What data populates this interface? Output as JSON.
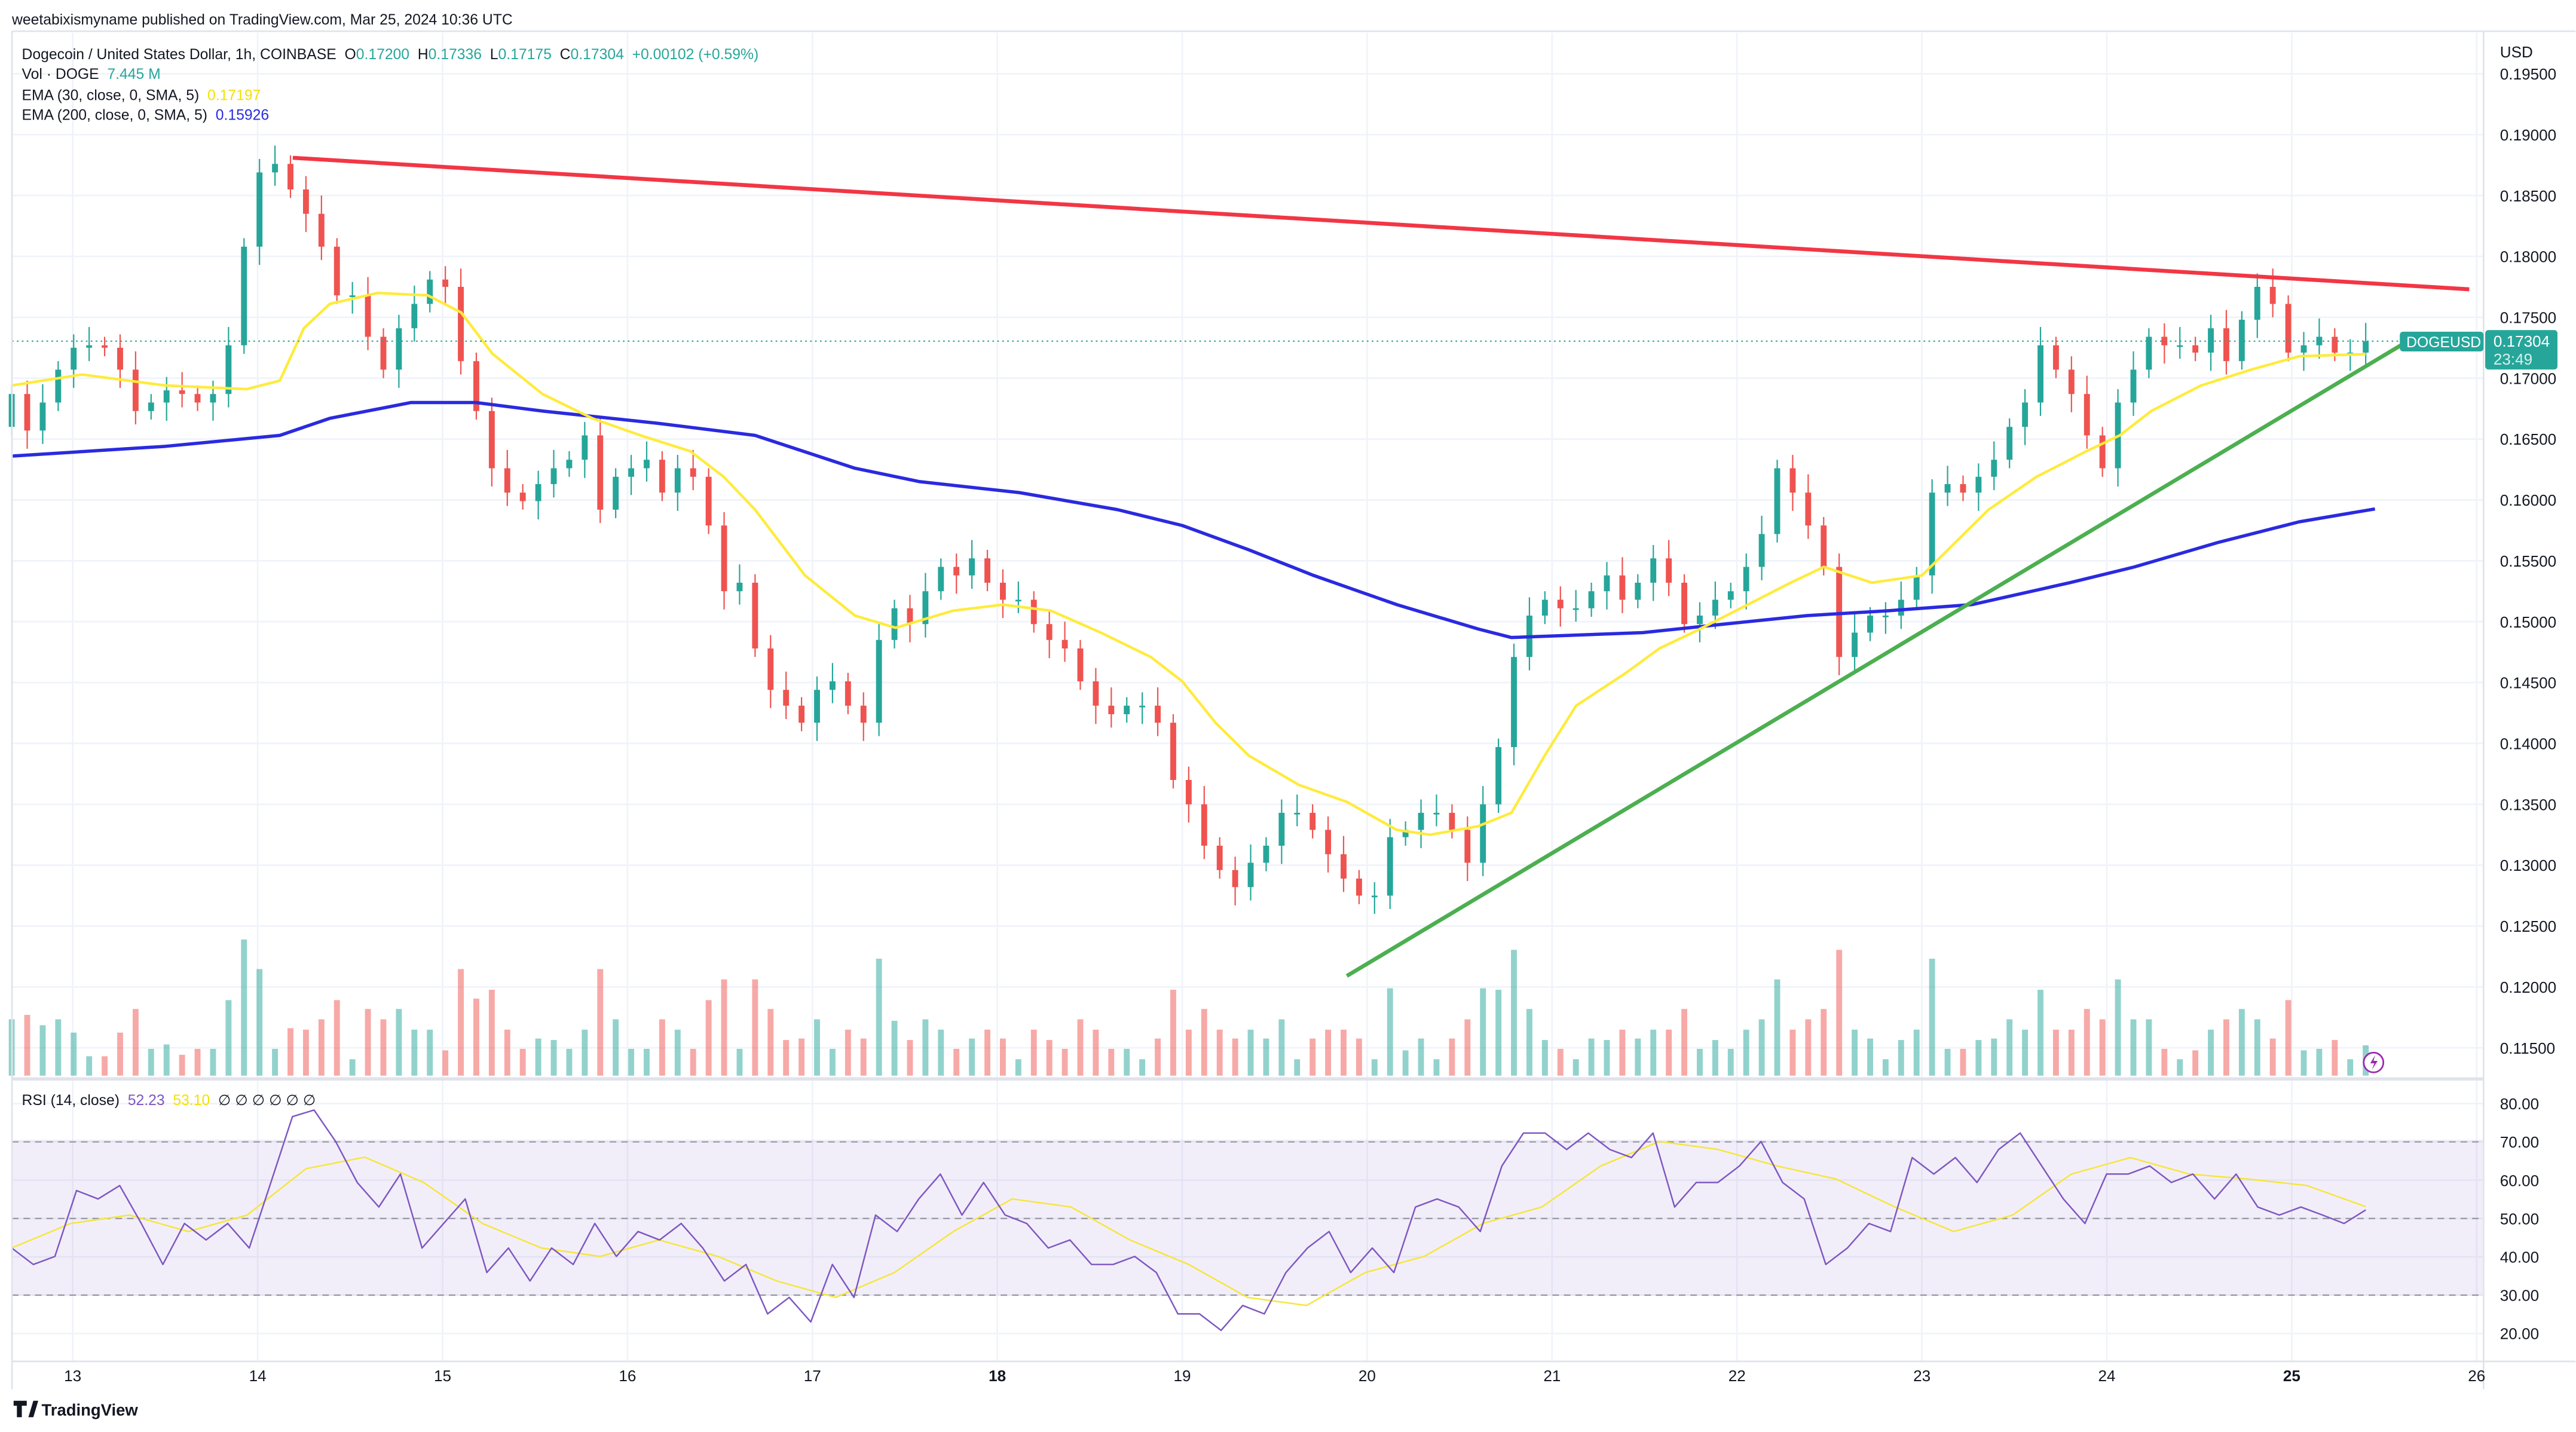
{
  "header": {
    "published": "weetabixismyname published on TradingView.com, Mar 25, 2024 10:36 UTC"
  },
  "legend": {
    "symbol": "Dogecoin / United States Dollar, 1h, COINBASE",
    "o_label": "O",
    "o": "0.17200",
    "h_label": "H",
    "h": "0.17336",
    "l_label": "L",
    "l": "0.17175",
    "c_label": "C",
    "c": "0.17304",
    "change": "+0.00102 (+0.59%)",
    "vol_label": "Vol · DOGE",
    "vol": "7.445 M",
    "ema30_label": "EMA (30, close, 0, SMA, 5)",
    "ema30": "0.17197",
    "ema200_label": "EMA (200, close, 0, SMA, 5)",
    "ema200": "0.15926",
    "rsi_label": "RSI (14, close)",
    "rsi": "52.23",
    "rsi_ma": "53.10",
    "rsi_extra": "∅ ∅ ∅ ∅ ∅ ∅"
  },
  "price_axis": {
    "currency": "USD",
    "ticks": [
      "0.19500",
      "0.19000",
      "0.18500",
      "0.18000",
      "0.17500",
      "0.17000",
      "0.16500",
      "0.16000",
      "0.15500",
      "0.15000",
      "0.14500",
      "0.14000",
      "0.13500",
      "0.13000",
      "0.12500",
      "0.12000",
      "0.11500"
    ]
  },
  "price_tag": {
    "symbol": "DOGEUSD",
    "price": "0.17304",
    "countdown": "23:49"
  },
  "rsi_axis": {
    "ticks": [
      "80.00",
      "70.00",
      "60.00",
      "50.00",
      "40.00",
      "30.00",
      "20.00"
    ]
  },
  "time_axis": {
    "ticks": [
      "13",
      "14",
      "15",
      "16",
      "17",
      "18",
      "19",
      "20",
      "21",
      "22",
      "23",
      "24",
      "25",
      "26"
    ]
  },
  "footer": {
    "brand": "TradingView"
  },
  "colors": {
    "up": "#26a69a",
    "down": "#ef5350",
    "ema30": "#ffeb3b",
    "ema200": "#2a2ae0",
    "resistance": "#f23645",
    "support": "#4caf50",
    "rsi": "#7e57c2",
    "rsi_ma": "#f5e63c"
  },
  "icons": {
    "alert": "lightning-icon"
  },
  "chart_data": {
    "type": "candlestick",
    "xlabel": "",
    "ylabel": "",
    "ylim": [
      0.1125,
      0.1975
    ],
    "time_range_days_of_march": [
      12.67,
      25.4
    ],
    "first_open": 0.166,
    "closes": [
      0.1687,
      0.1657,
      0.168,
      0.1707,
      0.1725,
      0.1727,
      0.1725,
      0.1707,
      0.1673,
      0.168,
      0.169,
      0.1687,
      0.168,
      0.1687,
      0.1727,
      0.1808,
      0.1869,
      0.1876,
      0.1855,
      0.1835,
      0.1808,
      0.1768,
      0.1768,
      0.1734,
      0.1707,
      0.1741,
      0.1761,
      0.1781,
      0.1775,
      0.1714,
      0.1673,
      0.1626,
      0.1606,
      0.1599,
      0.1613,
      0.1626,
      0.1633,
      0.1653,
      0.1592,
      0.1619,
      0.1626,
      0.1633,
      0.1606,
      0.1626,
      0.1619,
      0.1579,
      0.1525,
      0.1532,
      0.1478,
      0.1444,
      0.1431,
      0.1417,
      0.1444,
      0.1451,
      0.1431,
      0.1417,
      0.1485,
      0.1511,
      0.1498,
      0.1525,
      0.1545,
      0.1538,
      0.1552,
      0.1532,
      0.1518,
      0.1518,
      0.1498,
      0.1485,
      0.1478,
      0.1451,
      0.1431,
      0.1424,
      0.1431,
      0.1431,
      0.1417,
      0.137,
      0.135,
      0.1316,
      0.1296,
      0.1282,
      0.1302,
      0.1316,
      0.1343,
      0.1343,
      0.1329,
      0.1309,
      0.1289,
      0.1275,
      0.1275,
      0.1323,
      0.1329,
      0.1343,
      0.1343,
      0.1329,
      0.1302,
      0.135,
      0.1397,
      0.1471,
      0.1505,
      0.1518,
      0.1511,
      0.1511,
      0.1525,
      0.1538,
      0.1518,
      0.1532,
      0.1552,
      0.1532,
      0.1498,
      0.1505,
      0.1518,
      0.1525,
      0.1545,
      0.1572,
      0.1626,
      0.1606,
      0.1579,
      0.1545,
      0.1471,
      0.1491,
      0.1505,
      0.1505,
      0.1518,
      0.1538,
      0.1606,
      0.1613,
      0.1606,
      0.1619,
      0.1633,
      0.166,
      0.168,
      0.1727,
      0.1707,
      0.1687,
      0.1653,
      0.1626,
      0.168,
      0.1707,
      0.1734,
      0.1727,
      0.1727,
      0.1721,
      0.1741,
      0.1714,
      0.1748,
      0.1775,
      0.1761,
      0.1721,
      0.1727,
      0.1734,
      0.1721,
      0.1721,
      0.17304
    ],
    "ema30": [
      [
        12.67,
        0.1694
      ],
      [
        13.05,
        0.1703
      ],
      [
        13.5,
        0.1694
      ],
      [
        13.94,
        0.1691
      ],
      [
        14.12,
        0.1698
      ],
      [
        14.25,
        0.1741
      ],
      [
        14.39,
        0.1761
      ],
      [
        14.65,
        0.177
      ],
      [
        14.92,
        0.1768
      ],
      [
        15.1,
        0.1754
      ],
      [
        15.27,
        0.172
      ],
      [
        15.54,
        0.1687
      ],
      [
        15.81,
        0.1667
      ],
      [
        16.07,
        0.1653
      ],
      [
        16.34,
        0.164
      ],
      [
        16.52,
        0.1619
      ],
      [
        16.69,
        0.1592
      ],
      [
        16.96,
        0.1538
      ],
      [
        17.23,
        0.1505
      ],
      [
        17.45,
        0.1495
      ],
      [
        17.76,
        0.1509
      ],
      [
        18.03,
        0.1514
      ],
      [
        18.29,
        0.1509
      ],
      [
        18.56,
        0.1491
      ],
      [
        18.83,
        0.1471
      ],
      [
        19.0,
        0.1451
      ],
      [
        19.18,
        0.1417
      ],
      [
        19.36,
        0.139
      ],
      [
        19.63,
        0.1366
      ],
      [
        19.89,
        0.1352
      ],
      [
        20.16,
        0.1329
      ],
      [
        20.34,
        0.1325
      ],
      [
        20.6,
        0.1332
      ],
      [
        20.78,
        0.1343
      ],
      [
        20.96,
        0.139
      ],
      [
        21.13,
        0.1431
      ],
      [
        21.4,
        0.1458
      ],
      [
        21.58,
        0.1478
      ],
      [
        21.76,
        0.1491
      ],
      [
        22.02,
        0.1511
      ],
      [
        22.29,
        0.1532
      ],
      [
        22.47,
        0.1545
      ],
      [
        22.73,
        0.1532
      ],
      [
        23.0,
        0.1538
      ],
      [
        23.18,
        0.1565
      ],
      [
        23.36,
        0.1592
      ],
      [
        23.62,
        0.1619
      ],
      [
        23.89,
        0.164
      ],
      [
        24.07,
        0.1653
      ],
      [
        24.24,
        0.1673
      ],
      [
        24.51,
        0.1694
      ],
      [
        24.78,
        0.1707
      ],
      [
        25.04,
        0.1718
      ],
      [
        25.4,
        0.17197
      ]
    ],
    "ema200": [
      [
        12.67,
        0.1636
      ],
      [
        13.5,
        0.1644
      ],
      [
        14.12,
        0.1653
      ],
      [
        14.39,
        0.1667
      ],
      [
        14.83,
        0.168
      ],
      [
        15.18,
        0.168
      ],
      [
        15.54,
        0.1673
      ],
      [
        16.16,
        0.1663
      ],
      [
        16.69,
        0.1653
      ],
      [
        17.23,
        0.1626
      ],
      [
        17.58,
        0.1615
      ],
      [
        18.12,
        0.1606
      ],
      [
        18.65,
        0.1592
      ],
      [
        19.0,
        0.1579
      ],
      [
        19.36,
        0.1559
      ],
      [
        19.71,
        0.1538
      ],
      [
        20.16,
        0.1514
      ],
      [
        20.6,
        0.1494
      ],
      [
        20.78,
        0.1487
      ],
      [
        21.49,
        0.1491
      ],
      [
        21.93,
        0.1498
      ],
      [
        22.38,
        0.1505
      ],
      [
        22.82,
        0.1509
      ],
      [
        23.27,
        0.1514
      ],
      [
        23.8,
        0.1532
      ],
      [
        24.15,
        0.1545
      ],
      [
        24.6,
        0.1565
      ],
      [
        25.04,
        0.1582
      ],
      [
        25.45,
        0.15926
      ]
    ],
    "resistance_line": [
      [
        14.19,
        0.1881
      ],
      [
        25.96,
        0.1773
      ]
    ],
    "support_line": [
      [
        19.89,
        0.1209
      ],
      [
        25.59,
        0.1727
      ]
    ],
    "rsi": {
      "ylim": [
        15,
        85
      ],
      "levels": [
        70,
        50,
        30
      ],
      "values": [
        42.3,
        38.0,
        40.1,
        57.3,
        55.1,
        58.6,
        48.7,
        38.0,
        48.7,
        44.4,
        48.7,
        42.3,
        59.4,
        76.6,
        78.3,
        70.1,
        59.4,
        53.0,
        61.6,
        42.3,
        48.7,
        55.1,
        35.9,
        42.3,
        33.7,
        42.3,
        38.0,
        48.7,
        40.1,
        46.6,
        44.4,
        48.7,
        42.3,
        33.7,
        38.0,
        25.1,
        29.4,
        23.0,
        38.0,
        29.4,
        50.9,
        46.6,
        55.1,
        61.6,
        50.9,
        59.4,
        50.9,
        48.7,
        42.3,
        44.4,
        38.0,
        38.0,
        40.1,
        35.9,
        25.1,
        25.1,
        20.8,
        27.3,
        25.1,
        35.9,
        42.3,
        46.6,
        35.9,
        42.3,
        35.9,
        53.0,
        55.1,
        53.0,
        46.6,
        63.7,
        72.3,
        72.3,
        68.0,
        72.3,
        68.0,
        65.9,
        72.3,
        53.0,
        59.4,
        59.4,
        63.7,
        70.1,
        59.4,
        55.1,
        38.0,
        42.3,
        48.7,
        46.6,
        65.9,
        61.6,
        65.9,
        59.4,
        68.0,
        72.3,
        63.7,
        55.1,
        48.7,
        61.6,
        61.6,
        63.7,
        59.4,
        61.6,
        55.1,
        61.6,
        53.0,
        50.9,
        53.0,
        50.9,
        48.7,
        52.23
      ],
      "ma_values": [
        42.3,
        48.7,
        50.9,
        46.6,
        50.9,
        63.0,
        66.0,
        59.4,
        48.7,
        42.3,
        40.1,
        44.4,
        40.1,
        33.7,
        29.4,
        35.9,
        46.6,
        55.1,
        53.0,
        44.4,
        38.0,
        29.4,
        27.3,
        35.9,
        40.1,
        48.7,
        53.0,
        63.7,
        70.1,
        68.0,
        63.7,
        60.3,
        53.0,
        46.6,
        50.9,
        61.6,
        65.9,
        61.6,
        60.3,
        58.6,
        53.1
      ]
    }
  }
}
